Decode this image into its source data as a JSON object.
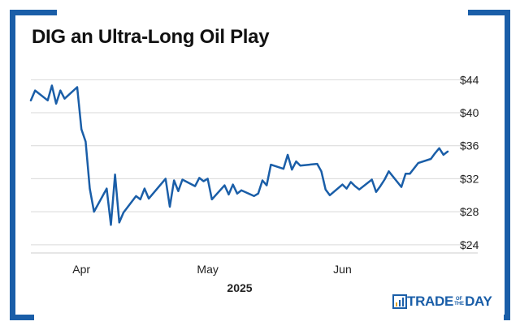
{
  "header": {
    "title": "DIG an Ultra-Long Oil Play"
  },
  "brand": {
    "part1": "TRADE",
    "small_top": "OF",
    "small_bottom": "THE",
    "part2": "DAY",
    "color": "#1a5ea8"
  },
  "chart_data": {
    "type": "line",
    "title": "DIG an Ultra-Long Oil Play",
    "xlabel": "2025",
    "ylabel": "",
    "x_start": "2025-03-20",
    "x_end": "2025-06-27",
    "ylim": [
      23,
      46
    ],
    "yticks": [
      24,
      28,
      32,
      36,
      40,
      44
    ],
    "ytick_labels": [
      "$24",
      "$28",
      "$32",
      "$36",
      "$40",
      "$44"
    ],
    "xtick_labels": [
      {
        "label": "Apr",
        "date": "2025-04-01"
      },
      {
        "label": "May",
        "date": "2025-05-01"
      },
      {
        "label": "Jun",
        "date": "2025-06-02"
      }
    ],
    "grid": "horizontal",
    "line_color": "#1a5ea8",
    "series": [
      {
        "x": [
          "2025-03-20",
          "2025-03-21",
          "2025-03-24",
          "2025-03-25",
          "2025-03-26",
          "2025-03-27",
          "2025-03-28",
          "2025-03-31",
          "2025-04-01",
          "2025-04-02",
          "2025-04-03",
          "2025-04-04",
          "2025-04-07",
          "2025-04-08",
          "2025-04-09",
          "2025-04-10",
          "2025-04-11",
          "2025-04-14",
          "2025-04-15",
          "2025-04-16",
          "2025-04-17",
          "2025-04-21",
          "2025-04-22",
          "2025-04-23",
          "2025-04-24",
          "2025-04-25",
          "2025-04-28",
          "2025-04-29",
          "2025-04-30",
          "2025-05-01",
          "2025-05-02",
          "2025-05-05",
          "2025-05-06",
          "2025-05-07",
          "2025-05-08",
          "2025-05-09",
          "2025-05-12",
          "2025-05-13",
          "2025-05-14",
          "2025-05-15",
          "2025-05-16",
          "2025-05-19",
          "2025-05-20",
          "2025-05-21",
          "2025-05-22",
          "2025-05-23",
          "2025-05-27",
          "2025-05-28",
          "2025-05-29",
          "2025-05-30",
          "2025-06-02",
          "2025-06-03",
          "2025-06-04",
          "2025-06-05",
          "2025-06-06",
          "2025-06-09",
          "2025-06-10",
          "2025-06-11",
          "2025-06-12",
          "2025-06-13",
          "2025-06-16",
          "2025-06-17",
          "2025-06-18",
          "2025-06-20",
          "2025-06-23",
          "2025-06-24",
          "2025-06-25",
          "2025-06-26",
          "2025-06-27"
        ],
        "values": [
          41.5,
          42.7,
          41.5,
          43.3,
          41.1,
          42.7,
          41.7,
          43.1,
          38.0,
          36.5,
          30.8,
          28.0,
          30.8,
          26.4,
          32.5,
          26.7,
          27.9,
          29.9,
          29.5,
          30.8,
          29.6,
          32.0,
          28.6,
          31.8,
          30.5,
          31.9,
          31.1,
          32.1,
          31.7,
          32.0,
          29.5,
          31.2,
          30.1,
          31.3,
          30.2,
          30.6,
          29.9,
          30.2,
          31.8,
          31.2,
          33.7,
          33.2,
          34.9,
          33.1,
          34.1,
          33.6,
          33.8,
          32.9,
          30.7,
          30.0,
          31.3,
          30.8,
          31.6,
          31.1,
          30.7,
          31.9,
          30.4,
          31.1,
          31.9,
          32.9,
          31.0,
          32.6,
          32.6,
          33.9,
          34.4,
          35.1,
          35.7,
          34.9,
          35.3
        ]
      }
    ]
  }
}
